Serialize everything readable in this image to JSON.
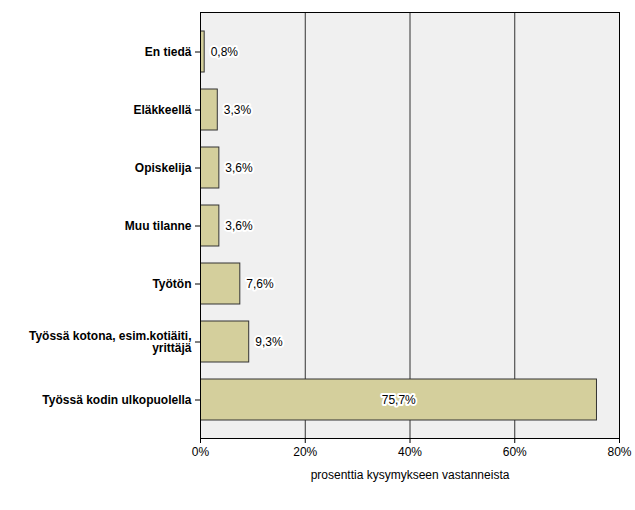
{
  "chart_data": {
    "type": "bar",
    "orientation": "horizontal",
    "categories": [
      "En tiedä",
      "Eläkkeellä",
      "Opiskelija",
      "Muu tilanne",
      "Työtön",
      "Työssä kotona, esim.kotiäiti, yrittäjä",
      "Työssä kodin ulkopuolella"
    ],
    "values": [
      0.8,
      3.3,
      3.6,
      3.6,
      7.6,
      9.3,
      75.7
    ],
    "value_labels": [
      "0,8%",
      "3,3%",
      "3,6%",
      "3,6%",
      "7,6%",
      "9,3%",
      "75,7%"
    ],
    "data_labels": true,
    "color": "#d4cf9c",
    "xlabel": "prosenttia kysymykseen vastanneista",
    "xlim": [
      0,
      80
    ],
    "xticks": [
      {
        "value": 0,
        "label": "0%"
      },
      {
        "value": 20,
        "label": "20%"
      },
      {
        "value": 40,
        "label": "40%"
      },
      {
        "value": 60,
        "label": "60%"
      },
      {
        "value": 80,
        "label": "80%"
      }
    ],
    "grid": true
  }
}
